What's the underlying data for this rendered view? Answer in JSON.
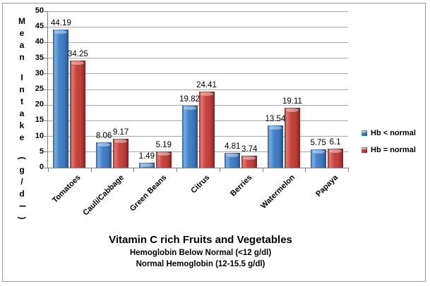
{
  "chart_data": {
    "type": "bar",
    "title": "Vitamin C rich Fruits and Vegetables",
    "subtitles": [
      "Hemoglobin Below Normal (<12 g/dl)",
      "Normal Hemoglobin (12-15.5 g/dl)"
    ],
    "ylabel": "Mean Intake (g/dl)",
    "categories": [
      "Tomatoes",
      "Cauli/Cabbage",
      "Green Beans",
      "Citrus",
      "Berries",
      "Watermelon",
      "Papaya"
    ],
    "series": [
      {
        "name": "Hb < normal",
        "color": "#4180c3",
        "values": [
          44.19,
          8.06,
          1.49,
          19.82,
          4.81,
          13.54,
          5.75
        ]
      },
      {
        "name": "Hb = normal",
        "color": "#c24440",
        "values": [
          34.25,
          9.17,
          5.19,
          24.41,
          3.74,
          19.11,
          6.1
        ]
      }
    ],
    "ylim": [
      0,
      50
    ],
    "ytick_step": 5,
    "grid": true,
    "legend_position": "right",
    "data_labels": true
  }
}
